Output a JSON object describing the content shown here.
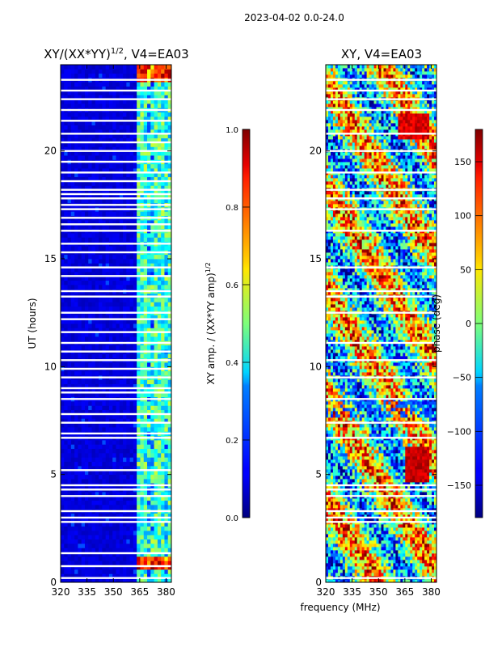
{
  "figure": {
    "suptitle": "2023-04-02 0.0-24.0",
    "xlabel": "frequency (MHz)"
  },
  "chart_data": [
    {
      "type": "heatmap",
      "title_main": "XY/(XX*YY)",
      "title_exp": "1/2",
      "title_tail": ", V4=EA03",
      "ylabel": "UT (hours)",
      "xlim": [
        320,
        383
      ],
      "ylim": [
        0,
        24
      ],
      "xticks": [
        "320",
        "335",
        "350",
        "365",
        "380"
      ],
      "xtick_values": [
        320,
        335,
        350,
        365,
        380
      ],
      "yticks": [
        "0",
        "5",
        "10",
        "15",
        "20"
      ],
      "ytick_values": [
        0,
        5,
        10,
        15,
        20
      ],
      "colorbar": {
        "label_main": "XY amp. / (XX*YY amp)",
        "label_exp": "1/2",
        "range": [
          0.0,
          1.0
        ],
        "ticks": [
          "0.0",
          "0.2",
          "0.4",
          "0.6",
          "0.8",
          "1.0"
        ],
        "tick_values": [
          0.0,
          0.2,
          0.4,
          0.6,
          0.8,
          1.0
        ]
      },
      "flagged_hours": [
        0.2,
        0.75,
        1.35,
        2.8,
        3.0,
        3.3,
        4.0,
        4.3,
        4.5,
        5.2,
        6.7,
        6.9,
        7.4,
        7.8,
        8.5,
        8.8,
        9.0,
        9.5,
        9.9,
        10.3,
        10.7,
        11.1,
        11.6,
        12.2,
        12.5,
        13.25,
        13.5,
        14.2,
        14.6,
        15.3,
        15.7,
        16.3,
        16.6,
        16.9,
        17.3,
        17.5,
        17.8,
        18.0,
        18.2,
        18.6,
        19.0,
        19.5,
        20.0,
        20.4,
        20.8,
        21.4,
        21.9,
        22.4,
        22.8,
        23.3
      ],
      "band_description": "low coherence (~0.05) below 362 MHz; elevated (0.3-0.6) between 362 and 381 MHz with peaks near 1.0 around 0.5-1 h and 23.5 h"
    },
    {
      "type": "heatmap",
      "title_main": "XY, V4=EA03",
      "xlim": [
        320,
        383
      ],
      "ylim": [
        0,
        24
      ],
      "xticks": [
        "320",
        "335",
        "350",
        "365",
        "380"
      ],
      "xtick_values": [
        320,
        335,
        350,
        365,
        380
      ],
      "yticks": [
        "0",
        "5",
        "10",
        "15",
        "20"
      ],
      "ytick_values": [
        0,
        5,
        10,
        15,
        20
      ],
      "colorbar": {
        "label": "phase (deg)",
        "range": [
          -180,
          180
        ],
        "ticks": [
          "−150",
          "−100",
          "−50",
          "0",
          "50",
          "100",
          "150"
        ],
        "tick_values": [
          -150,
          -100,
          -50,
          0,
          50,
          100,
          150
        ]
      },
      "flagged_hours": [
        0.2,
        2.8,
        3.0,
        3.3,
        4.0,
        4.3,
        4.5,
        6.7,
        7.4,
        8.5,
        9.5,
        10.3,
        11.1,
        12.5,
        13.25,
        13.5,
        14.6,
        16.3,
        17.3,
        17.8,
        18.2,
        19.0,
        20.0,
        20.8,
        21.9,
        22.4,
        22.8,
        23.3
      ],
      "band_description": "noisy phase spanning -180 to 180 deg across the band, red patches (~150 deg) near 365-378 MHz around 4.5-6 h and 21 h"
    }
  ]
}
